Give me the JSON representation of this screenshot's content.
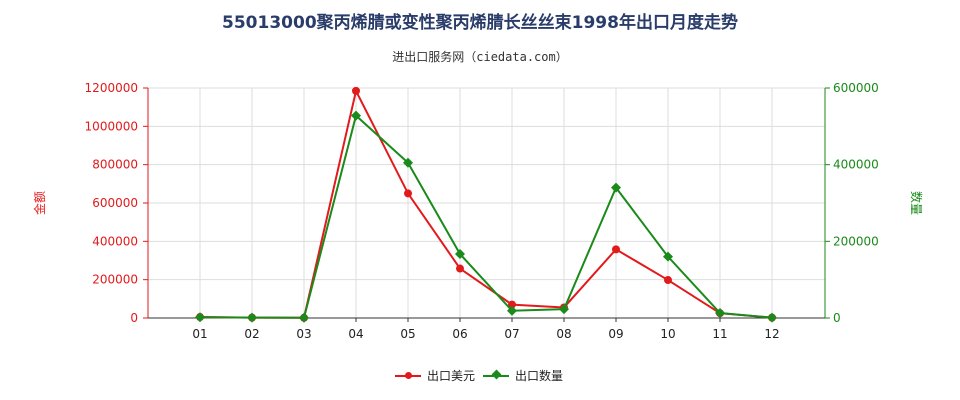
{
  "title": "55013000聚丙烯腈或变性聚丙烯腈长丝丝束1998年出口月度走势",
  "subtitle": "进出口服务网（ciedata.com）",
  "colors": {
    "value_series": "#e31a1c",
    "qty_series": "#1a8a1a",
    "left_axis": "#e31a1c",
    "right_axis": "#1a8a1a",
    "grid": "#dddddd"
  },
  "chart_data": {
    "type": "line",
    "title": "55013000聚丙烯腈或变性聚丙烯腈长丝丝束1998年出口月度走势",
    "categories": [
      "01",
      "02",
      "03",
      "04",
      "05",
      "06",
      "07",
      "08",
      "09",
      "10",
      "11",
      "12"
    ],
    "y_left": {
      "label": "金额",
      "lim": [
        0,
        1200000
      ],
      "ticks": [
        "0",
        "200000",
        "400000",
        "600000",
        "800000",
        "1000000",
        "1200000"
      ]
    },
    "y_right": {
      "label": "数量",
      "lim": [
        0,
        600000
      ],
      "ticks": [
        "0",
        "200000",
        "400000",
        "600000"
      ]
    },
    "series": [
      {
        "name": "出口美元",
        "axis": "left",
        "marker": "circle",
        "values": [
          5000,
          2000,
          1000,
          1185000,
          650000,
          258000,
          70000,
          55000,
          358000,
          198000,
          25000,
          2000
        ]
      },
      {
        "name": "出口数量",
        "axis": "right",
        "marker": "diamond",
        "values": [
          2000,
          1000,
          500,
          528000,
          405000,
          167000,
          19000,
          23000,
          340000,
          160000,
          13000,
          1000
        ]
      }
    ],
    "grid": true,
    "legend_position": "bottom-center"
  }
}
